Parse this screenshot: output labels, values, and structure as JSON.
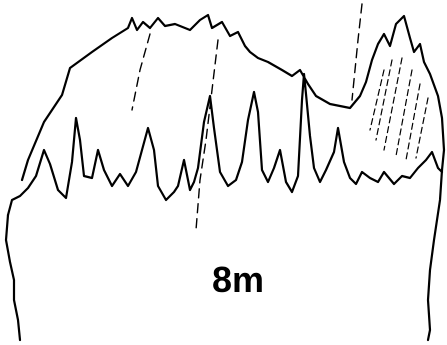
{
  "scale_label": "8m"
}
